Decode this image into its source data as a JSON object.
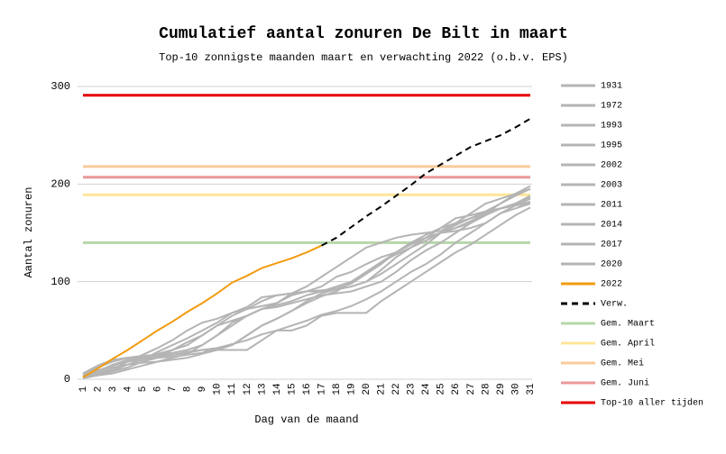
{
  "chart_data": {
    "type": "line",
    "title": "Cumulatief aantal zonuren De Bilt in maart",
    "subtitle": "Top-10 zonnigste maanden maart en verwachting 2022 (o.b.v. EPS)",
    "x_label": "Dag van de maand",
    "y_label": "Aantal zonuren",
    "categories": [
      1,
      2,
      3,
      4,
      5,
      6,
      7,
      8,
      9,
      10,
      11,
      12,
      13,
      14,
      15,
      16,
      17,
      18,
      19,
      20,
      21,
      22,
      23,
      24,
      25,
      26,
      27,
      28,
      29,
      30,
      31
    ],
    "ylim": [
      0,
      300
    ],
    "yticks": [
      0,
      100,
      200,
      300
    ],
    "grid": true,
    "series": [
      {
        "name": "1931",
        "color": "#b4b4b4",
        "values": [
          5,
          12,
          18,
          22,
          24,
          25,
          27,
          30,
          35,
          45,
          58,
          65,
          72,
          76,
          80,
          86,
          90,
          95,
          100,
          110,
          120,
          130,
          140,
          148,
          155,
          160,
          165,
          172,
          180,
          188,
          195
        ]
      },
      {
        "name": "1972",
        "color": "#b4b4b4",
        "values": [
          3,
          8,
          15,
          20,
          22,
          22,
          23,
          25,
          27,
          32,
          35,
          45,
          55,
          62,
          70,
          80,
          88,
          92,
          95,
          100,
          108,
          118,
          128,
          138,
          150,
          158,
          165,
          170,
          175,
          178,
          180
        ]
      },
      {
        "name": "1993",
        "color": "#b4b4b4",
        "values": [
          2,
          5,
          8,
          12,
          18,
          22,
          30,
          38,
          45,
          55,
          65,
          72,
          80,
          86,
          88,
          90,
          91,
          93,
          98,
          108,
          118,
          130,
          140,
          145,
          150,
          155,
          160,
          168,
          175,
          180,
          186
        ]
      },
      {
        "name": "1995",
        "color": "#b4b4b4",
        "values": [
          6,
          14,
          20,
          22,
          23,
          24,
          25,
          27,
          30,
          32,
          36,
          40,
          46,
          50,
          55,
          60,
          66,
          70,
          75,
          82,
          90,
          100,
          110,
          118,
          128,
          140,
          150,
          160,
          170,
          178,
          185
        ]
      },
      {
        "name": "2002",
        "color": "#b4b4b4",
        "values": [
          4,
          9,
          14,
          18,
          20,
          22,
          25,
          28,
          30,
          30,
          30,
          30,
          40,
          50,
          50,
          55,
          65,
          68,
          68,
          68,
          80,
          90,
          100,
          110,
          120,
          130,
          138,
          148,
          158,
          168,
          176
        ]
      },
      {
        "name": "2003",
        "color": "#b4b4b4",
        "values": [
          2,
          4,
          6,
          10,
          14,
          18,
          22,
          26,
          35,
          45,
          55,
          65,
          72,
          74,
          78,
          82,
          86,
          88,
          90,
          95,
          100,
          110,
          122,
          132,
          140,
          150,
          160,
          170,
          175,
          180,
          188
        ]
      },
      {
        "name": "2011",
        "color": "#b4b4b4",
        "values": [
          3,
          8,
          14,
          18,
          22,
          26,
          30,
          35,
          45,
          55,
          60,
          65,
          72,
          78,
          86,
          90,
          95,
          105,
          110,
          118,
          125,
          130,
          138,
          145,
          150,
          155,
          162,
          170,
          180,
          190,
          198
        ]
      },
      {
        "name": "2014",
        "color": "#b4b4b4",
        "values": [
          1,
          4,
          9,
          15,
          20,
          28,
          35,
          42,
          50,
          58,
          68,
          72,
          75,
          78,
          88,
          95,
          105,
          115,
          125,
          135,
          140,
          145,
          148,
          150,
          152,
          160,
          170,
          180,
          185,
          190,
          195
        ]
      },
      {
        "name": "2017",
        "color": "#b4b4b4",
        "values": [
          2,
          5,
          10,
          18,
          25,
          32,
          40,
          50,
          58,
          62,
          68,
          74,
          84,
          86,
          88,
          90,
          90,
          92,
          95,
          100,
          112,
          125,
          135,
          145,
          155,
          165,
          168,
          172,
          175,
          178,
          182
        ]
      },
      {
        "name": "2020",
        "color": "#b4b4b4",
        "values": [
          3,
          6,
          12,
          15,
          17,
          18,
          20,
          22,
          26,
          30,
          35,
          45,
          55,
          62,
          70,
          78,
          85,
          90,
          100,
          110,
          120,
          128,
          135,
          142,
          150,
          152,
          155,
          160,
          170,
          175,
          180
        ]
      },
      {
        "name": "2022",
        "color": "#f29b10",
        "values": [
          2,
          11,
          21,
          30,
          40,
          50,
          59,
          69,
          78,
          88,
          99,
          106,
          114,
          119,
          124,
          130,
          137,
          null,
          null,
          null,
          null,
          null,
          null,
          null,
          null,
          null,
          null,
          null,
          null,
          null,
          null
        ]
      },
      {
        "name": "Verw.",
        "color": "#000000",
        "dashed": true,
        "values": [
          null,
          null,
          null,
          null,
          null,
          null,
          null,
          null,
          null,
          null,
          null,
          null,
          null,
          null,
          null,
          null,
          137,
          145,
          156,
          167,
          177,
          188,
          199,
          211,
          220,
          229,
          238,
          244,
          250,
          258,
          267
        ]
      }
    ],
    "reference_lines": [
      {
        "name": "Gem. Maart",
        "color": "#b6d7a8",
        "value": 140
      },
      {
        "name": "Gem. April",
        "color": "#ffe599",
        "value": 189
      },
      {
        "name": "Gem. Mei",
        "color": "#f9cb9c",
        "value": 218
      },
      {
        "name": "Gem. Juni",
        "color": "#ea9999",
        "value": 207
      },
      {
        "name": "Top-10 aller tijden",
        "color": "#e60000",
        "value": 291
      }
    ]
  }
}
